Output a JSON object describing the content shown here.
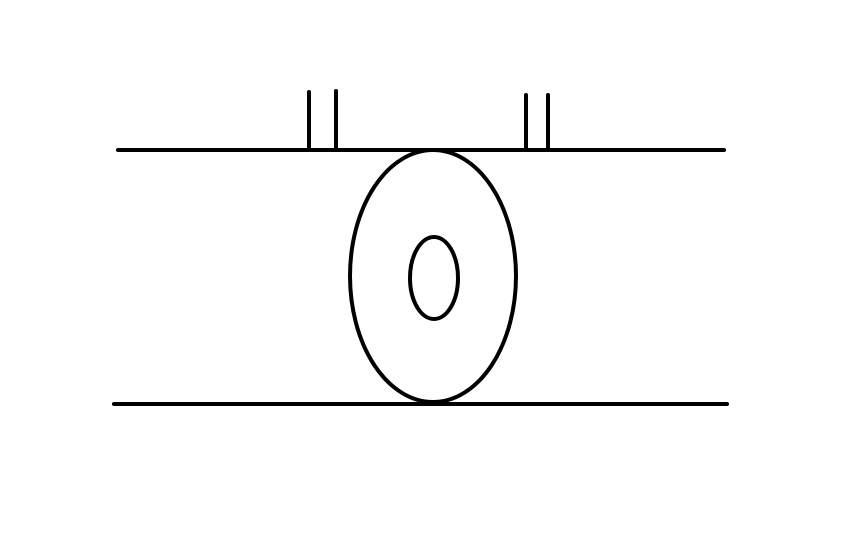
{
  "diagram": {
    "stroke_color": "#000000",
    "background_color": "#ffffff",
    "elements": [
      "top-rail-line",
      "bottom-rail-line",
      "left-double-tick",
      "right-double-tick",
      "outer-ellipse",
      "inner-ellipse"
    ]
  }
}
